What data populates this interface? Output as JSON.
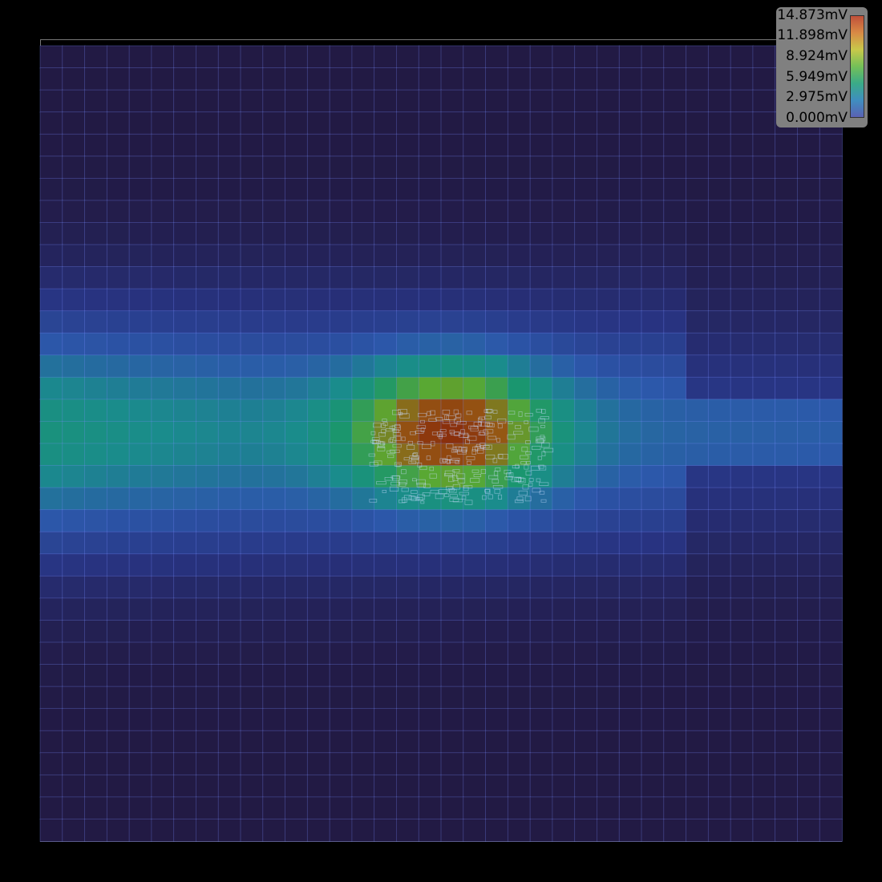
{
  "chart_data": {
    "type": "heatmap",
    "title": "",
    "unit": "mV",
    "vmin": 0.0,
    "vmax": 14.873,
    "legend": {
      "placement": "top-right",
      "ticks": [
        "14.873mV",
        "11.898mV",
        "8.924mV",
        "5.949mV",
        "2.975mV",
        "0.000mV"
      ]
    },
    "grid": {
      "rows": 36,
      "cols": 36,
      "hotspot_row": 17,
      "hotspot_col": 18
    },
    "colors": {
      "low": "#221a44",
      "mid_low": "#2c48a0",
      "mid": "#1a9a88",
      "mid_high": "#5aa832",
      "high": "#8a1a08",
      "background": "#000000"
    }
  }
}
